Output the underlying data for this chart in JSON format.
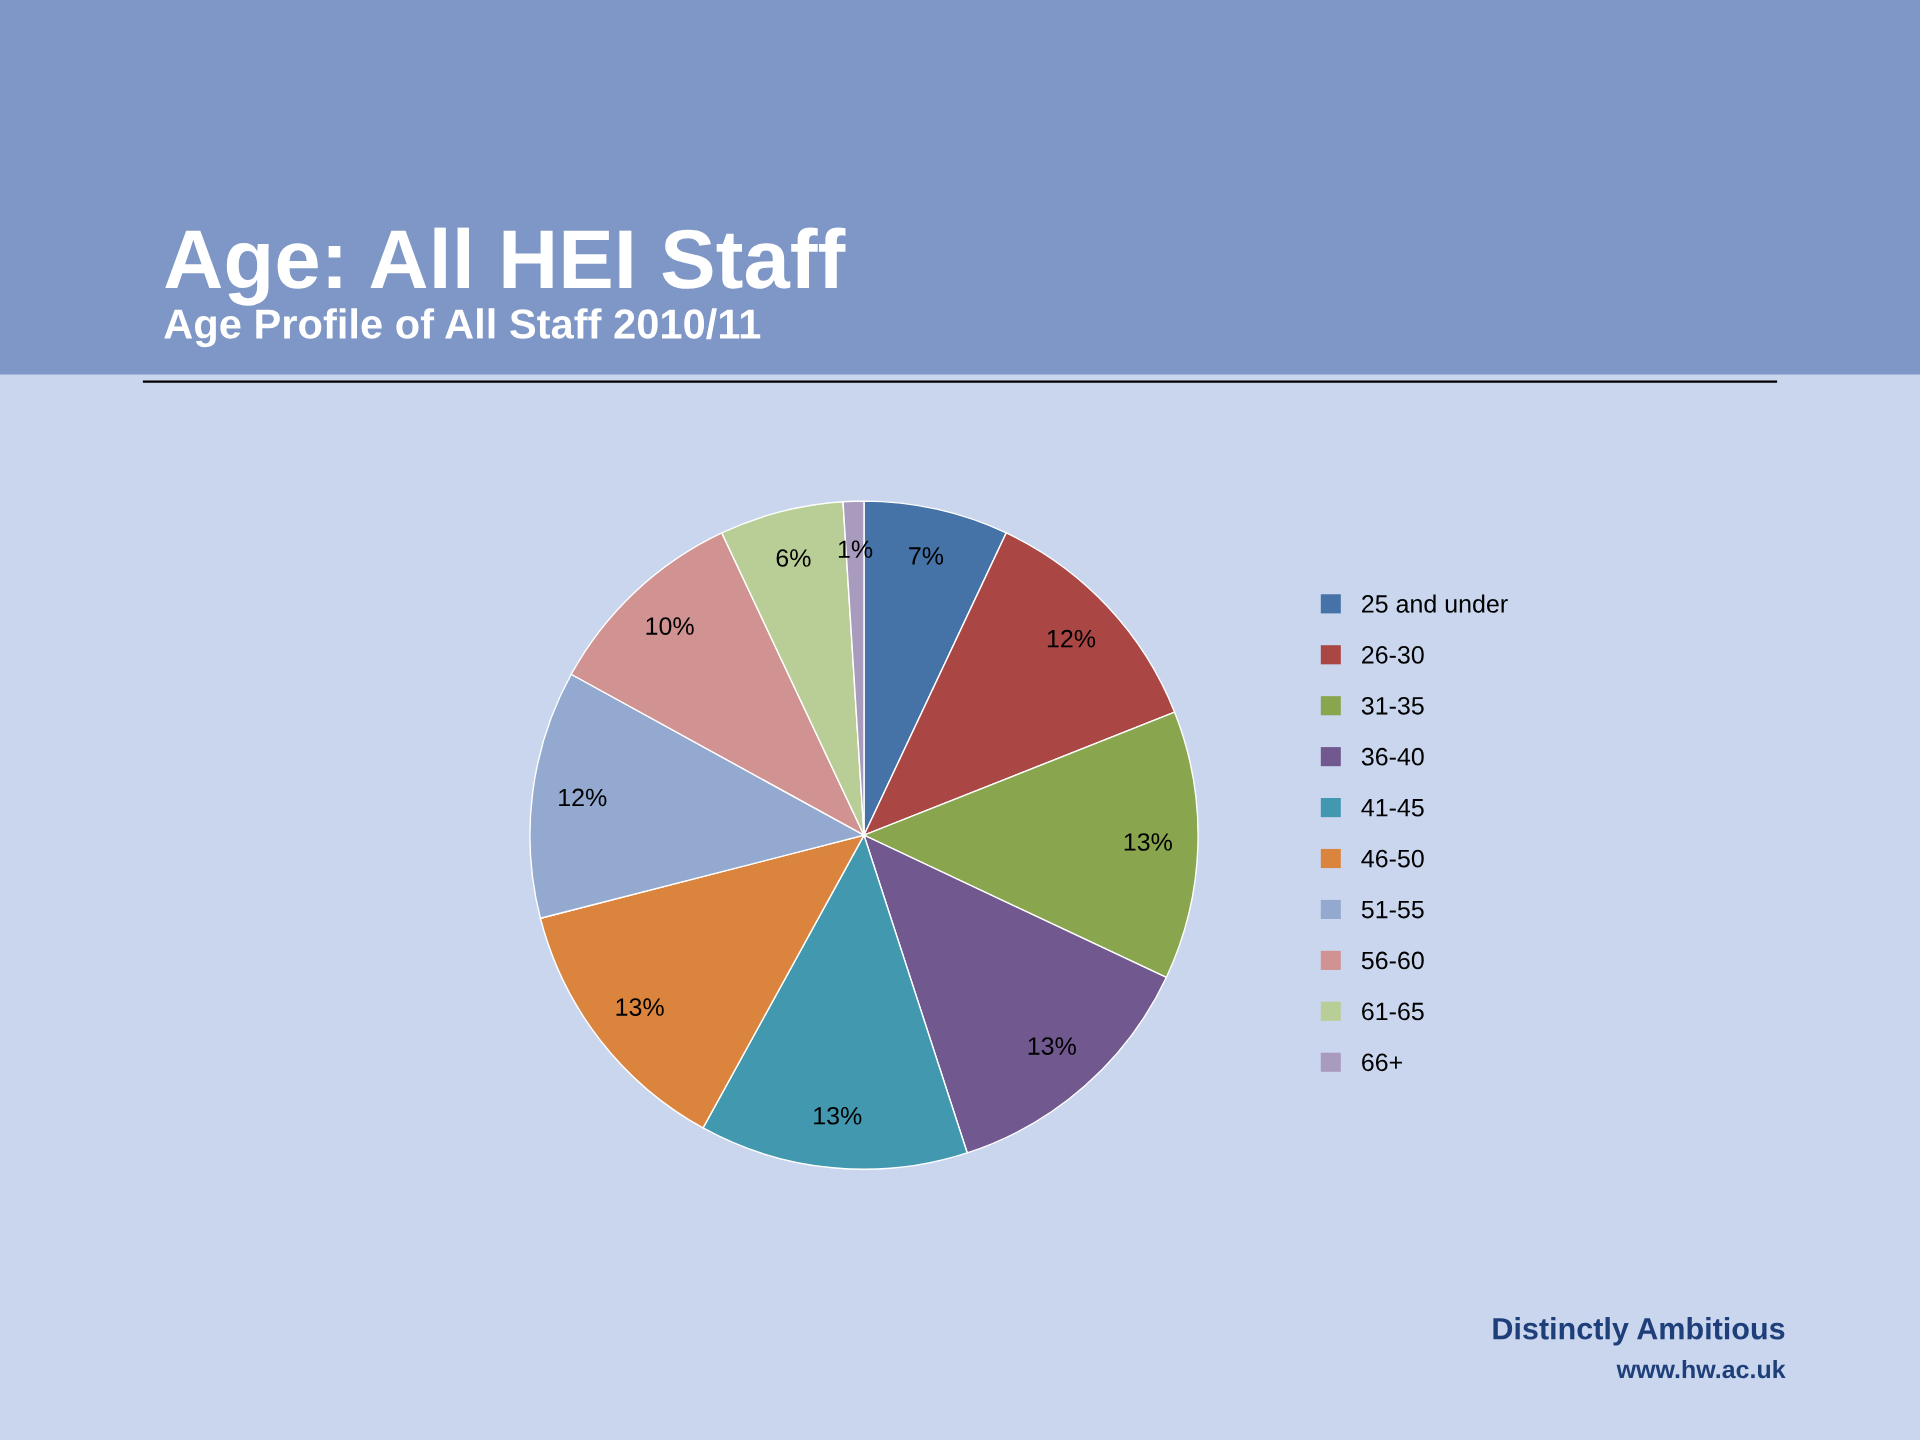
{
  "chart_data": {
    "type": "pie",
    "title": "Age: All HEI Staff",
    "subtitle": "Age Profile of All Staff 2010/11",
    "categories": [
      "25 and under",
      "26-30",
      "31-35",
      "36-40",
      "41-45",
      "46-50",
      "51-55",
      "56-60",
      "61-65",
      "66+"
    ],
    "values": [
      7,
      12,
      13,
      13,
      13,
      13,
      12,
      10,
      6,
      1
    ],
    "value_labels": [
      "7%",
      "12%",
      "13%",
      "13%",
      "13%",
      "13%",
      "12%",
      "10%",
      "6%",
      "1%"
    ],
    "colors": [
      "#4572a7",
      "#aa4643",
      "#89a54e",
      "#71588f",
      "#4198af",
      "#db843d",
      "#93a9cf",
      "#d19392",
      "#b9cd96",
      "#a99bbd"
    ],
    "legend": "right",
    "annotations": [
      "Distinctly Ambitious",
      "www.hw.ac.uk"
    ]
  }
}
